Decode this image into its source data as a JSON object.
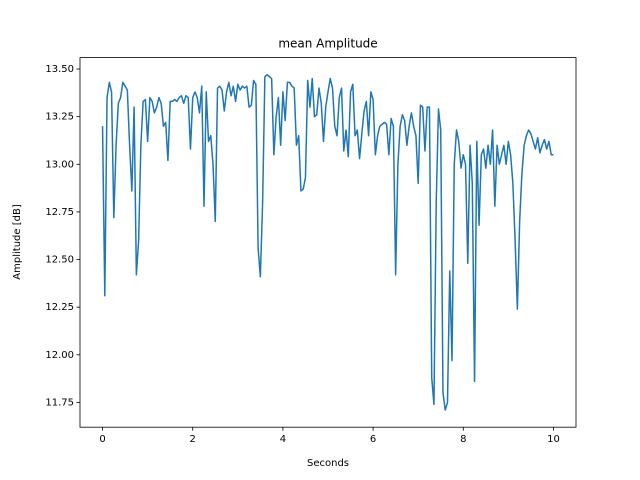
{
  "chart_data": {
    "type": "line",
    "title": "mean Amplitude",
    "x_label": "Seconds",
    "y_label": "Amplitude [dB]",
    "x": [
      0,
      0.05,
      0.1,
      0.15,
      0.2,
      0.25,
      0.3,
      0.35,
      0.4,
      0.45,
      0.5,
      0.55,
      0.6,
      0.65,
      0.7,
      0.75,
      0.8,
      0.85,
      0.9,
      0.95,
      1,
      1.05,
      1.1,
      1.15,
      1.2,
      1.25,
      1.3,
      1.35,
      1.4,
      1.45,
      1.5,
      1.55,
      1.6,
      1.65,
      1.7,
      1.75,
      1.8,
      1.85,
      1.9,
      1.95,
      2,
      2.05,
      2.1,
      2.15,
      2.2,
      2.25,
      2.3,
      2.35,
      2.4,
      2.45,
      2.5,
      2.55,
      2.6,
      2.65,
      2.7,
      2.75,
      2.8,
      2.85,
      2.9,
      2.95,
      3,
      3.05,
      3.1,
      3.15,
      3.2,
      3.25,
      3.3,
      3.35,
      3.4,
      3.45,
      3.5,
      3.55,
      3.6,
      3.65,
      3.7,
      3.75,
      3.8,
      3.85,
      3.9,
      3.95,
      4,
      4.05,
      4.1,
      4.15,
      4.2,
      4.25,
      4.3,
      4.35,
      4.4,
      4.45,
      4.5,
      4.55,
      4.6,
      4.65,
      4.7,
      4.75,
      4.8,
      4.85,
      4.9,
      4.95,
      5,
      5.05,
      5.1,
      5.15,
      5.2,
      5.25,
      5.3,
      5.35,
      5.4,
      5.45,
      5.5,
      5.55,
      5.6,
      5.65,
      5.7,
      5.75,
      5.8,
      5.85,
      5.9,
      5.95,
      6,
      6.05,
      6.1,
      6.15,
      6.2,
      6.25,
      6.3,
      6.35,
      6.4,
      6.45,
      6.5,
      6.55,
      6.6,
      6.65,
      6.7,
      6.75,
      6.8,
      6.85,
      6.9,
      6.95,
      7,
      7.05,
      7.1,
      7.15,
      7.2,
      7.25,
      7.3,
      7.35,
      7.4,
      7.45,
      7.5,
      7.55,
      7.6,
      7.65,
      7.7,
      7.75,
      7.8,
      7.85,
      7.9,
      7.95,
      8,
      8.05,
      8.1,
      8.15,
      8.2,
      8.25,
      8.3,
      8.35,
      8.4,
      8.45,
      8.5,
      8.55,
      8.6,
      8.65,
      8.7,
      8.75,
      8.8,
      8.85,
      8.9,
      8.95,
      9,
      9.05,
      9.1,
      9.15,
      9.2,
      9.25,
      9.3,
      9.35,
      9.4,
      9.45,
      9.5,
      9.55,
      9.6,
      9.65,
      9.7,
      9.75,
      9.8,
      9.85,
      9.9,
      9.95,
      10
    ],
    "series": [
      {
        "name": "mean Amplitude",
        "color": "#1f77b4",
        "values": [
          13.2,
          12.31,
          13.35,
          13.43,
          13.38,
          12.72,
          13.1,
          13.32,
          13.35,
          13.43,
          13.41,
          13.39,
          13.1,
          12.86,
          13.3,
          12.42,
          12.6,
          13.1,
          13.33,
          13.34,
          13.12,
          13.35,
          13.33,
          13.27,
          13.3,
          13.35,
          13.32,
          13.2,
          13.22,
          13.02,
          13.33,
          13.33,
          13.34,
          13.33,
          13.35,
          13.36,
          13.32,
          13.36,
          13.35,
          13.08,
          13.35,
          13.38,
          13.35,
          13.27,
          13.41,
          12.78,
          13.38,
          13.12,
          13.15,
          13.0,
          12.7,
          13.4,
          13.41,
          13.39,
          13.28,
          13.38,
          13.43,
          13.36,
          13.41,
          13.33,
          13.42,
          13.39,
          13.41,
          13.4,
          13.41,
          13.3,
          13.31,
          13.44,
          13.42,
          12.56,
          12.41,
          12.8,
          13.46,
          13.47,
          13.46,
          13.45,
          13.05,
          13.25,
          13.35,
          13.1,
          13.38,
          13.23,
          13.43,
          13.43,
          13.41,
          13.4,
          13.1,
          13.15,
          12.86,
          12.87,
          12.93,
          13.44,
          13.3,
          13.45,
          13.25,
          13.26,
          13.4,
          13.32,
          13.12,
          13.3,
          13.38,
          13.45,
          13.4,
          13.2,
          13.15,
          13.35,
          13.4,
          13.07,
          13.18,
          13.04,
          13.38,
          13.42,
          13.15,
          13.18,
          13.03,
          13.16,
          13.28,
          13.33,
          13.15,
          13.38,
          13.34,
          13.05,
          13.15,
          13.2,
          13.21,
          13.22,
          13.21,
          13.05,
          13.24,
          13.2,
          12.42,
          13.0,
          13.2,
          13.26,
          13.23,
          13.1,
          13.2,
          13.27,
          13.2,
          13.15,
          12.9,
          13.31,
          13.3,
          13.07,
          13.3,
          13.3,
          11.88,
          11.74,
          12.8,
          13.29,
          13.18,
          11.8,
          11.71,
          11.75,
          12.44,
          11.97,
          13.0,
          13.18,
          13.12,
          12.98,
          13.05,
          13.0,
          12.48,
          13.1,
          12.9,
          11.86,
          13.12,
          12.68,
          13.05,
          13.08,
          12.98,
          13.1,
          13.0,
          13.18,
          12.78,
          13.1,
          13.0,
          13.05,
          13.1,
          13.0,
          13.12,
          13.05,
          12.9,
          12.6,
          12.24,
          12.7,
          12.95,
          13.1,
          13.15,
          13.18,
          13.16,
          13.12,
          13.08,
          13.14,
          13.06,
          13.1,
          13.13,
          13.08,
          13.12,
          13.05,
          13.05
        ]
      }
    ],
    "xlim": [
      -0.5,
      10.5
    ],
    "ylim": [
      11.62,
      13.56
    ],
    "xticks": [
      0,
      2,
      4,
      6,
      8,
      10
    ],
    "yticks": [
      11.75,
      {
        "value": 12,
        "label": "12.00"
      },
      12.25,
      {
        "value": 12.5,
        "label": "12.50"
      },
      12.75,
      {
        "value": 13,
        "label": "13.00"
      },
      13.25,
      {
        "value": 13.5,
        "label": "13.50"
      }
    ],
    "grid": false
  }
}
